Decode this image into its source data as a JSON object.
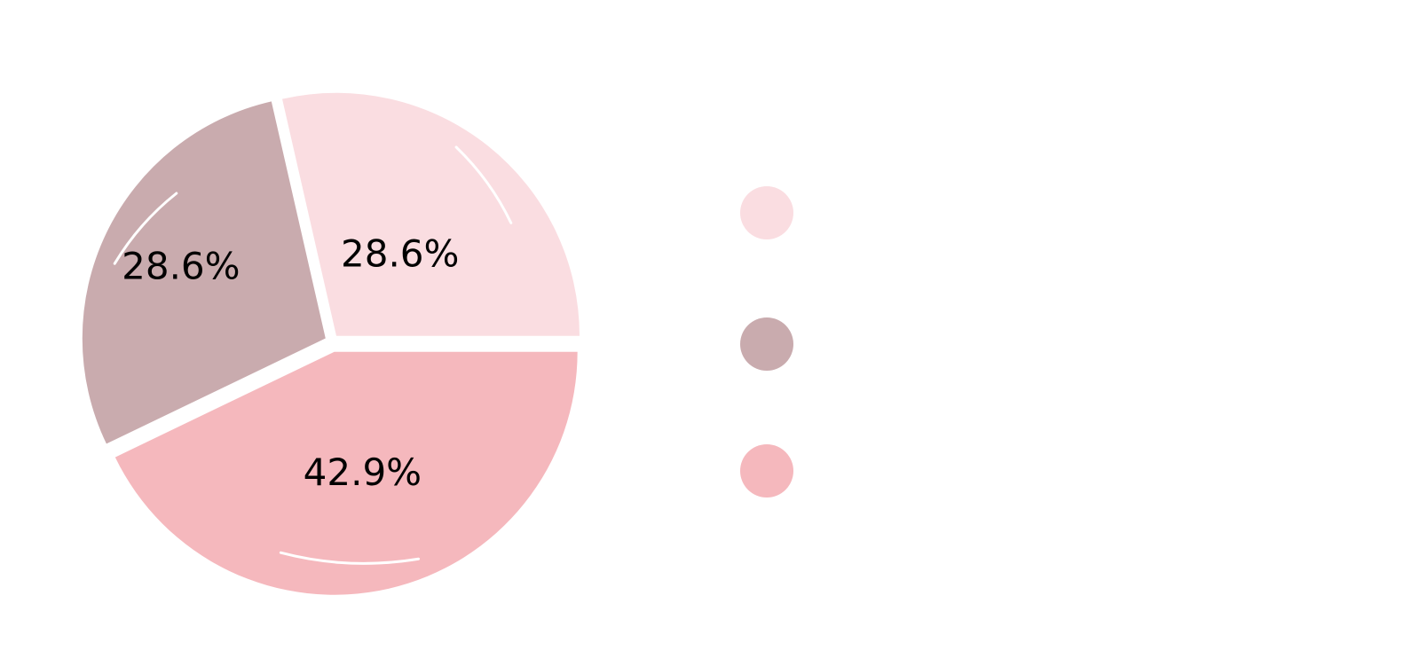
{
  "chart_data": {
    "type": "pie",
    "title": "",
    "slices": [
      {
        "value": 28.6,
        "label": "28.6%",
        "color": "#fadde1"
      },
      {
        "value": 28.6,
        "label": "28.6%",
        "color": "#c9abae"
      },
      {
        "value": 42.9,
        "label": "42.9%",
        "color": "#f5b8bd"
      }
    ],
    "legend": {
      "placement": "right",
      "entries": [
        {
          "label": "",
          "color": "#fadde1"
        },
        {
          "label": "",
          "color": "#c9abae"
        },
        {
          "label": "",
          "color": "#f5b8bd"
        }
      ]
    }
  }
}
